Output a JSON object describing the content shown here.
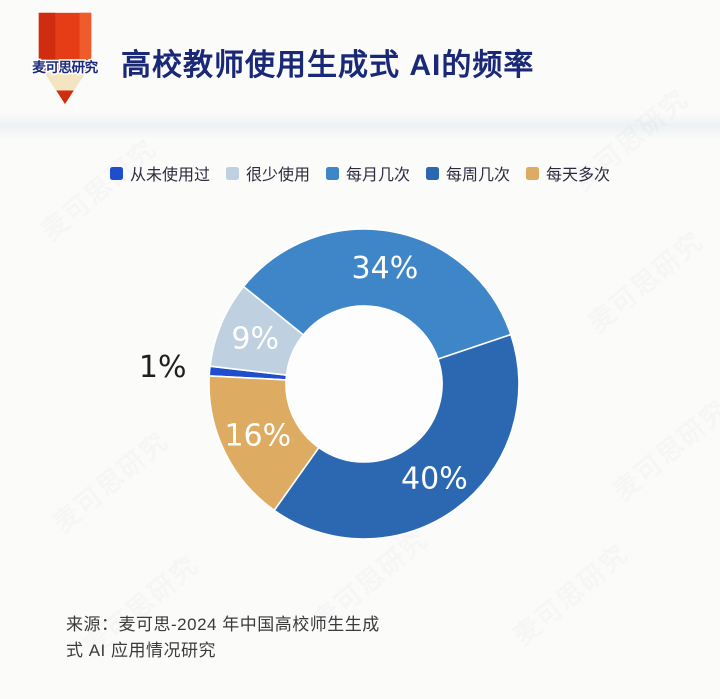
{
  "brand": {
    "logo_text": "麦可思研究"
  },
  "chart_data": {
    "type": "pie",
    "title": "高校教师使用生成式 AI的频率",
    "donut": true,
    "start_angle_deg": 273,
    "clockwise": true,
    "inner_radius_ratio": 0.5,
    "legend_position": "top",
    "slices": [
      {
        "key": "never-used",
        "label": "从未使用过",
        "value": 1,
        "pct_label": "1%",
        "color": "#1e4ecb"
      },
      {
        "key": "rarely-used",
        "label": "很少使用",
        "value": 9,
        "pct_label": "9%",
        "color": "#bfd1e1"
      },
      {
        "key": "few-times-monthly",
        "label": "每月几次",
        "value": 34,
        "pct_label": "34%",
        "color": "#3e86c8"
      },
      {
        "key": "few-times-weekly",
        "label": "每周几次",
        "value": 40,
        "pct_label": "40%",
        "color": "#2c68b2"
      },
      {
        "key": "multiple-daily",
        "label": "每天多次",
        "value": 16,
        "pct_label": "16%",
        "color": "#ddab62"
      }
    ],
    "label_colors": {
      "inside": "#ffffff",
      "outside": "#1f1f1f"
    }
  },
  "source": {
    "line1": "来源：麦可思-2024 年中国高校师生生成",
    "line2": "式 AI 应用情况研究"
  },
  "watermark": {
    "text": "麦可思研究"
  }
}
